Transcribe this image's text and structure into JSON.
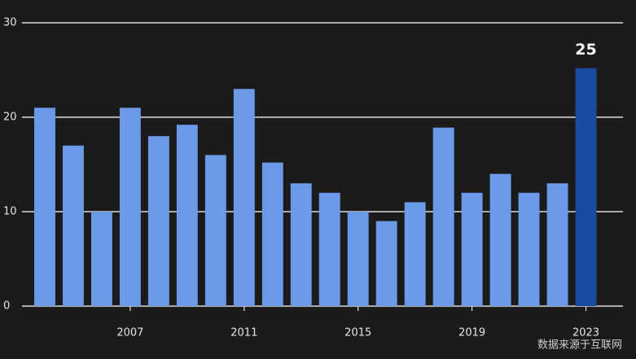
{
  "chart_data": {
    "type": "bar",
    "x": [
      2004,
      2005,
      2006,
      2007,
      2008,
      2009,
      2010,
      2011,
      2012,
      2013,
      2014,
      2015,
      2016,
      2017,
      2018,
      2019,
      2020,
      2021,
      2022,
      2023
    ],
    "values": [
      21,
      17,
      10,
      21,
      18,
      19.2,
      16,
      23,
      15.2,
      13,
      12,
      10,
      9,
      11,
      18.9,
      12,
      14,
      12,
      13,
      25.2
    ],
    "value_labels": [
      null,
      null,
      null,
      null,
      null,
      null,
      null,
      null,
      null,
      null,
      null,
      null,
      null,
      null,
      null,
      null,
      null,
      null,
      null,
      "25"
    ],
    "colors": [
      "#6b9be8",
      "#6b9be8",
      "#6b9be8",
      "#6b9be8",
      "#6b9be8",
      "#6b9be8",
      "#6b9be8",
      "#6b9be8",
      "#6b9be8",
      "#6b9be8",
      "#6b9be8",
      "#6b9be8",
      "#6b9be8",
      "#6b9be8",
      "#6b9be8",
      "#6b9be8",
      "#6b9be8",
      "#6b9be8",
      "#6b9be8",
      "#1a4aa0"
    ],
    "xlim": [
      2003.2,
      2024.3
    ],
    "xticks": [
      2007,
      2011,
      2015,
      2019,
      2023
    ],
    "ylim": [
      0,
      30
    ],
    "yticks": [
      0,
      10,
      20,
      30
    ],
    "grid": true,
    "watermark": "数据来源于互联网"
  }
}
